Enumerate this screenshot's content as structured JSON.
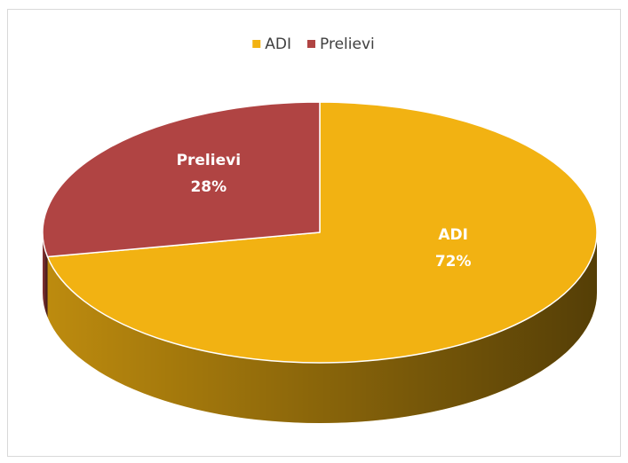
{
  "chart_data": {
    "type": "pie",
    "categories": [
      "ADI",
      "Prelievi"
    ],
    "values": [
      72,
      28
    ],
    "value_labels": [
      "72%",
      "28%"
    ],
    "colors": [
      "#f2b212",
      "#b04443"
    ],
    "legend": "top"
  }
}
